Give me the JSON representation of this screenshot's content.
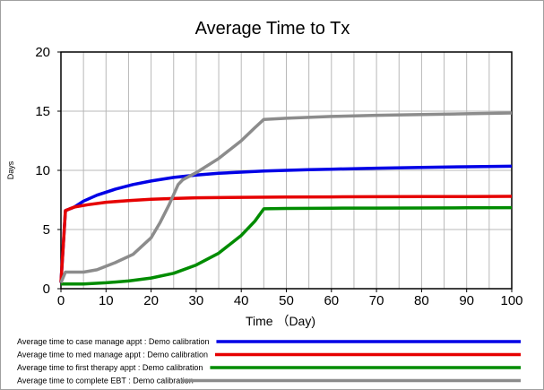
{
  "chart_data": {
    "type": "line",
    "title": "Average Time to Tx",
    "xlabel": "Time （Day)",
    "ylabel": "Days",
    "xlim": [
      0,
      100
    ],
    "ylim": [
      0,
      20
    ],
    "x_ticks": [
      "0",
      "10",
      "20",
      "30",
      "40",
      "50",
      "60",
      "70",
      "80",
      "90",
      "100"
    ],
    "y_ticks": [
      "0",
      "5",
      "10",
      "15",
      "20"
    ],
    "grid": true,
    "legend_position": "bottom",
    "series": [
      {
        "name": "Average time to case manage appt : Demo calibration",
        "color": "#0000e6",
        "points": [
          [
            0,
            0.5
          ],
          [
            1,
            6.6
          ],
          [
            3,
            6.9
          ],
          [
            5,
            7.4
          ],
          [
            8,
            7.9
          ],
          [
            12,
            8.4
          ],
          [
            16,
            8.8
          ],
          [
            20,
            9.1
          ],
          [
            25,
            9.4
          ],
          [
            30,
            9.6
          ],
          [
            35,
            9.75
          ],
          [
            40,
            9.85
          ],
          [
            45,
            9.95
          ],
          [
            50,
            10.0
          ],
          [
            55,
            10.05
          ],
          [
            60,
            10.1
          ],
          [
            70,
            10.18
          ],
          [
            80,
            10.25
          ],
          [
            90,
            10.3
          ],
          [
            100,
            10.35
          ]
        ]
      },
      {
        "name": "Average time to med manage appt : Demo calibration",
        "color": "#e60000",
        "points": [
          [
            0,
            0.5
          ],
          [
            1,
            6.6
          ],
          [
            3,
            6.9
          ],
          [
            6,
            7.1
          ],
          [
            10,
            7.3
          ],
          [
            15,
            7.45
          ],
          [
            20,
            7.55
          ],
          [
            25,
            7.62
          ],
          [
            30,
            7.68
          ],
          [
            40,
            7.72
          ],
          [
            50,
            7.75
          ],
          [
            60,
            7.76
          ],
          [
            70,
            7.77
          ],
          [
            80,
            7.78
          ],
          [
            90,
            7.79
          ],
          [
            100,
            7.8
          ]
        ]
      },
      {
        "name": "Average time to first therapy appt : Demo calibration",
        "color": "#008c00",
        "points": [
          [
            0,
            0.4
          ],
          [
            5,
            0.4
          ],
          [
            10,
            0.5
          ],
          [
            15,
            0.65
          ],
          [
            20,
            0.9
          ],
          [
            25,
            1.3
          ],
          [
            30,
            2.0
          ],
          [
            35,
            3.0
          ],
          [
            40,
            4.5
          ],
          [
            43,
            5.7
          ],
          [
            45,
            6.75
          ],
          [
            50,
            6.78
          ],
          [
            60,
            6.8
          ],
          [
            70,
            6.81
          ],
          [
            80,
            6.82
          ],
          [
            90,
            6.83
          ],
          [
            100,
            6.85
          ]
        ]
      },
      {
        "name": "Average time to complete EBT : Demo calibration",
        "color": "#8c8c8c",
        "points": [
          [
            0,
            0.5
          ],
          [
            1,
            1.4
          ],
          [
            5,
            1.4
          ],
          [
            8,
            1.6
          ],
          [
            12,
            2.2
          ],
          [
            16,
            2.9
          ],
          [
            20,
            4.3
          ],
          [
            22,
            5.6
          ],
          [
            24,
            7.1
          ],
          [
            26,
            8.8
          ],
          [
            27,
            9.2
          ],
          [
            30,
            9.8
          ],
          [
            35,
            11.0
          ],
          [
            40,
            12.5
          ],
          [
            43,
            13.6
          ],
          [
            45,
            14.3
          ],
          [
            50,
            14.4
          ],
          [
            60,
            14.55
          ],
          [
            70,
            14.65
          ],
          [
            80,
            14.72
          ],
          [
            90,
            14.78
          ],
          [
            100,
            14.85
          ]
        ]
      }
    ]
  }
}
